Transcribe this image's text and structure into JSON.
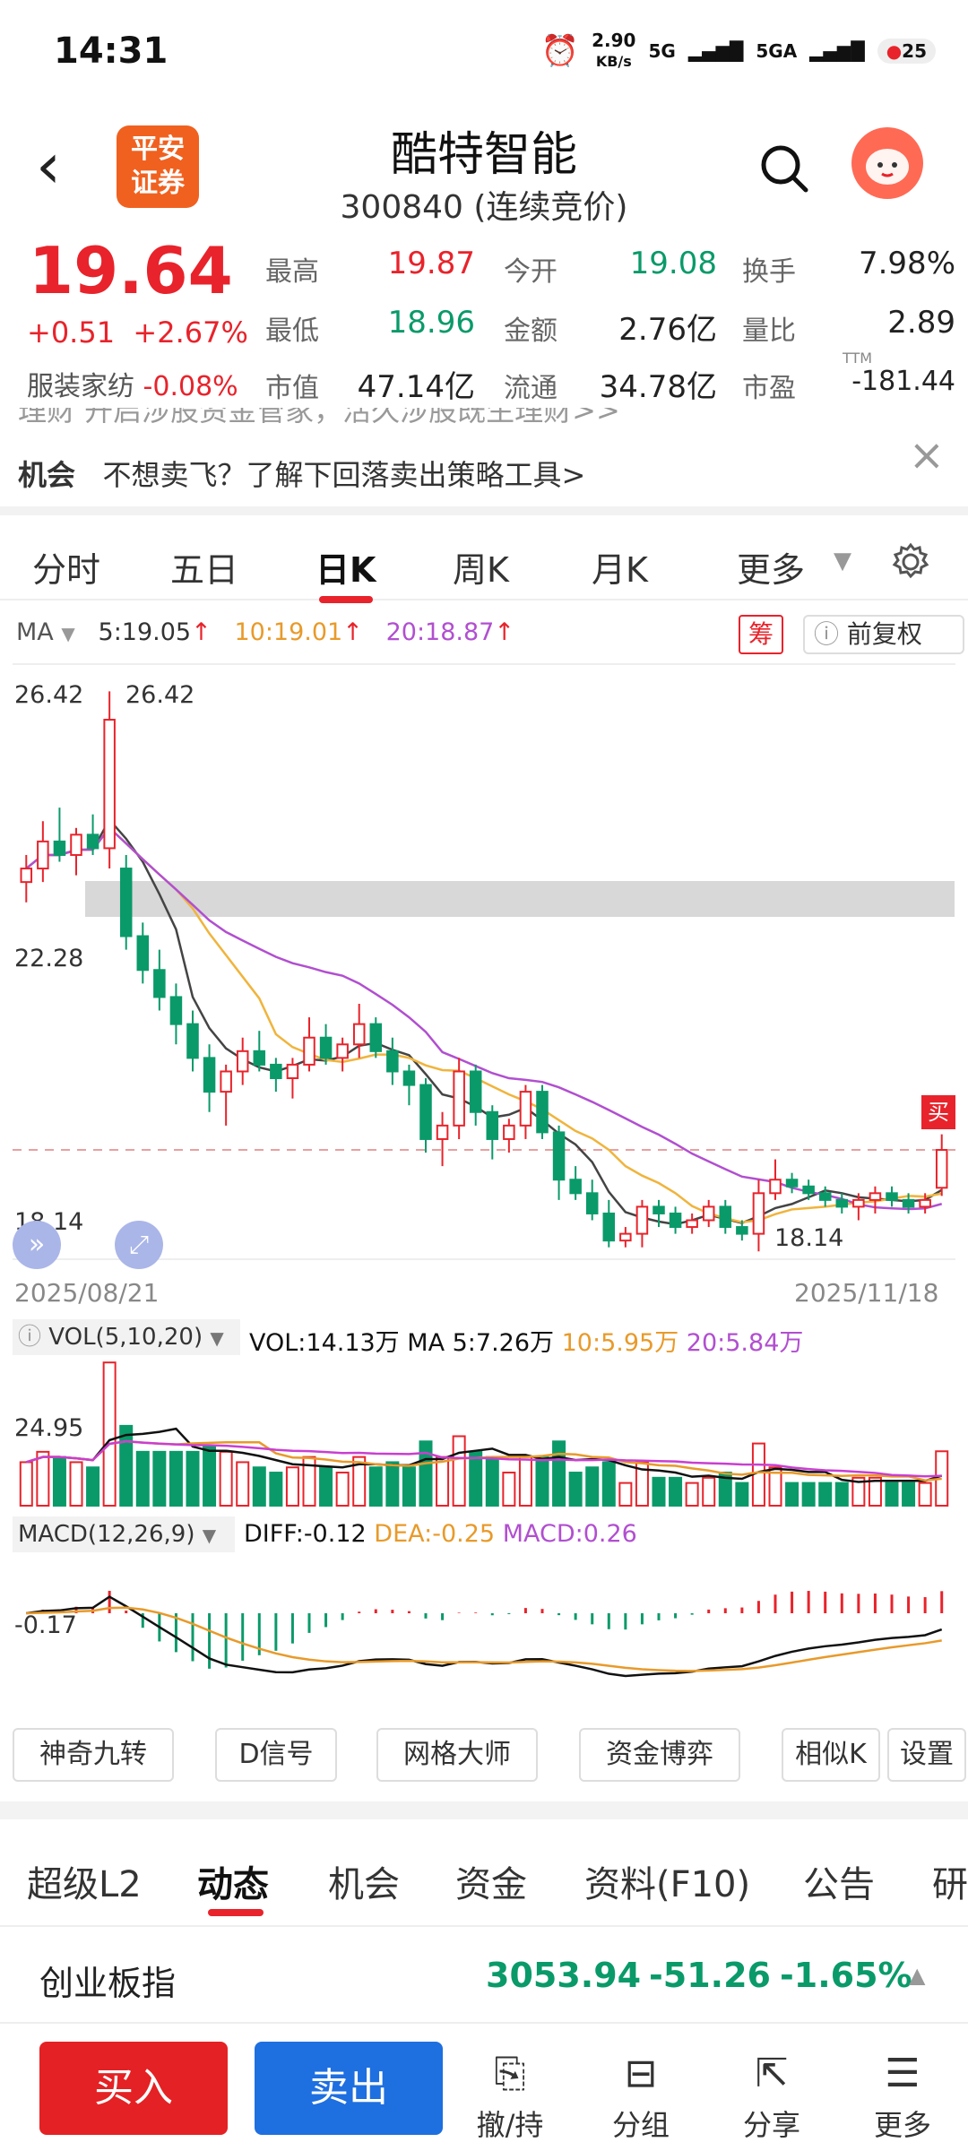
{
  "status": {
    "time": "14:31",
    "speed_top": "2.90",
    "speed_unit": "KB/s",
    "net1": "5G",
    "net2": "5GA",
    "battery": "25"
  },
  "header": {
    "logo_line1": "平安",
    "logo_line2": "证券",
    "name": "酷特智能",
    "code": "300840 (连续竞价)"
  },
  "quote": {
    "price": "19.64",
    "change": "+0.51",
    "change_pct": "+2.67%",
    "sector_label": "服装家纺",
    "sector_chg": "-0.08%",
    "fields": [
      {
        "label": "最高",
        "value": "19.87",
        "color": "red"
      },
      {
        "label": "今开",
        "value": "19.08",
        "color": "green"
      },
      {
        "label": "换手",
        "value": "7.98%",
        "color": "dark"
      },
      {
        "label": "最低",
        "value": "18.96",
        "color": "green"
      },
      {
        "label": "金额",
        "value": "2.76亿",
        "color": "dark"
      },
      {
        "label": "量比",
        "value": "2.89",
        "color": "dark"
      },
      {
        "label": "市值",
        "value": "47.14亿",
        "color": "dark"
      },
      {
        "label": "流通",
        "value": "34.78亿",
        "color": "dark"
      },
      {
        "label": "市盈",
        "value": "-181.44",
        "color": "dark"
      }
    ],
    "ttm": "TTM"
  },
  "banner": {
    "line1": "理财  开启涉股资金管家，活久涉股既生理财>>",
    "line2_tag": "机会",
    "line2": "不想卖飞？了解下回落卖出策略工具>",
    "close": "×"
  },
  "tabs": [
    "分时",
    "五日",
    "日K",
    "周K",
    "月K",
    "更多"
  ],
  "active_tab": "日K",
  "ma": {
    "label": "MA",
    "ma5": "5:19.05",
    "ma10": "10:19.01",
    "ma20": "20:18.87",
    "chip": "筹",
    "fq": "前复权"
  },
  "chart_data": {
    "type": "candlestick",
    "y_high_label": "26.42",
    "y_mid_label": "22.28",
    "y_low_label": "18.14",
    "max_marker": "26.42",
    "min_marker": "18.14",
    "buy_marker": "买",
    "start_date": "2025/08/21",
    "end_date": "2025/11/18",
    "ylim": [
      18.14,
      26.42
    ],
    "candles": [
      [
        23.6,
        24.0,
        23.3,
        23.8
      ],
      [
        23.8,
        24.5,
        23.6,
        24.2
      ],
      [
        24.2,
        24.7,
        23.9,
        24.0
      ],
      [
        24.0,
        24.4,
        23.7,
        24.3
      ],
      [
        24.3,
        24.6,
        24.0,
        24.1
      ],
      [
        24.1,
        26.42,
        23.8,
        26.0
      ],
      [
        23.8,
        24.0,
        22.6,
        22.8
      ],
      [
        22.8,
        23.0,
        22.1,
        22.3
      ],
      [
        22.3,
        22.6,
        21.7,
        21.9
      ],
      [
        21.9,
        22.1,
        21.2,
        21.5
      ],
      [
        21.5,
        21.7,
        20.8,
        21.0
      ],
      [
        21.0,
        21.2,
        20.2,
        20.5
      ],
      [
        20.5,
        20.9,
        20.0,
        20.8
      ],
      [
        20.8,
        21.3,
        20.6,
        21.1
      ],
      [
        21.1,
        21.4,
        20.8,
        20.9
      ],
      [
        20.9,
        21.0,
        20.5,
        20.7
      ],
      [
        20.7,
        21.0,
        20.4,
        20.9
      ],
      [
        20.9,
        21.6,
        20.8,
        21.3
      ],
      [
        21.3,
        21.5,
        20.9,
        21.0
      ],
      [
        21.0,
        21.3,
        20.8,
        21.2
      ],
      [
        21.2,
        21.8,
        21.0,
        21.5
      ],
      [
        21.5,
        21.6,
        21.0,
        21.1
      ],
      [
        21.1,
        21.3,
        20.6,
        20.8
      ],
      [
        20.8,
        20.9,
        20.3,
        20.6
      ],
      [
        20.6,
        20.7,
        19.6,
        19.8
      ],
      [
        19.8,
        20.2,
        19.4,
        20.0
      ],
      [
        20.0,
        21.0,
        19.8,
        20.8
      ],
      [
        20.8,
        20.9,
        20.0,
        20.2
      ],
      [
        20.2,
        20.3,
        19.5,
        19.8
      ],
      [
        19.8,
        20.1,
        19.6,
        20.0
      ],
      [
        20.0,
        20.6,
        19.8,
        20.5
      ],
      [
        20.5,
        20.6,
        19.8,
        19.9
      ],
      [
        19.9,
        20.0,
        18.9,
        19.2
      ],
      [
        19.2,
        19.4,
        18.9,
        19.0
      ],
      [
        19.0,
        19.2,
        18.6,
        18.7
      ],
      [
        18.7,
        18.9,
        18.2,
        18.3
      ],
      [
        18.3,
        18.5,
        18.2,
        18.4
      ],
      [
        18.4,
        18.9,
        18.2,
        18.8
      ],
      [
        18.8,
        18.9,
        18.5,
        18.7
      ],
      [
        18.7,
        18.8,
        18.4,
        18.5
      ],
      [
        18.5,
        18.7,
        18.4,
        18.6
      ],
      [
        18.6,
        18.9,
        18.5,
        18.8
      ],
      [
        18.8,
        18.9,
        18.4,
        18.5
      ],
      [
        18.5,
        18.6,
        18.3,
        18.4
      ],
      [
        18.4,
        19.2,
        18.14,
        19.0
      ],
      [
        19.0,
        19.5,
        18.9,
        19.2
      ],
      [
        19.2,
        19.3,
        19.0,
        19.1
      ],
      [
        19.1,
        19.2,
        18.9,
        19.0
      ],
      [
        19.0,
        19.1,
        18.8,
        18.9
      ],
      [
        18.9,
        19.0,
        18.7,
        18.8
      ],
      [
        18.8,
        19.0,
        18.6,
        18.9
      ],
      [
        18.9,
        19.1,
        18.7,
        19.0
      ],
      [
        19.0,
        19.1,
        18.8,
        18.9
      ],
      [
        18.9,
        19.0,
        18.7,
        18.8
      ],
      [
        18.8,
        19.0,
        18.7,
        18.9
      ],
      [
        19.08,
        19.87,
        18.96,
        19.64
      ]
    ]
  },
  "vol": {
    "label": "VOL(5,10,20)",
    "vol": "VOL:14.13万",
    "ma5": "MA 5:7.26万",
    "ma10": "10:5.95万",
    "ma20": "20:5.84万",
    "ylab": "24.95"
  },
  "macd": {
    "label": "MACD(12,26,9)",
    "diff": "DIFF:-0.12",
    "dea": "DEA:-0.25",
    "macd": "MACD:0.26",
    "ylab": "-0.17"
  },
  "tools": [
    "神奇九转",
    "D信号",
    "网格大师",
    "资金博弈",
    "相似K",
    "设置"
  ],
  "subtabs": [
    "超级L2",
    "动态",
    "机会",
    "资金",
    "资料(F10)",
    "公告",
    "研"
  ],
  "active_subtab": "动态",
  "index": {
    "name": "创业板指",
    "value": "3053.94",
    "chg": "-51.26",
    "pct": "-1.65%"
  },
  "bottom": {
    "buy": "买入",
    "sell": "卖出",
    "b1": "撤/持",
    "b2": "分组",
    "b3": "分享",
    "b4": "更多"
  }
}
